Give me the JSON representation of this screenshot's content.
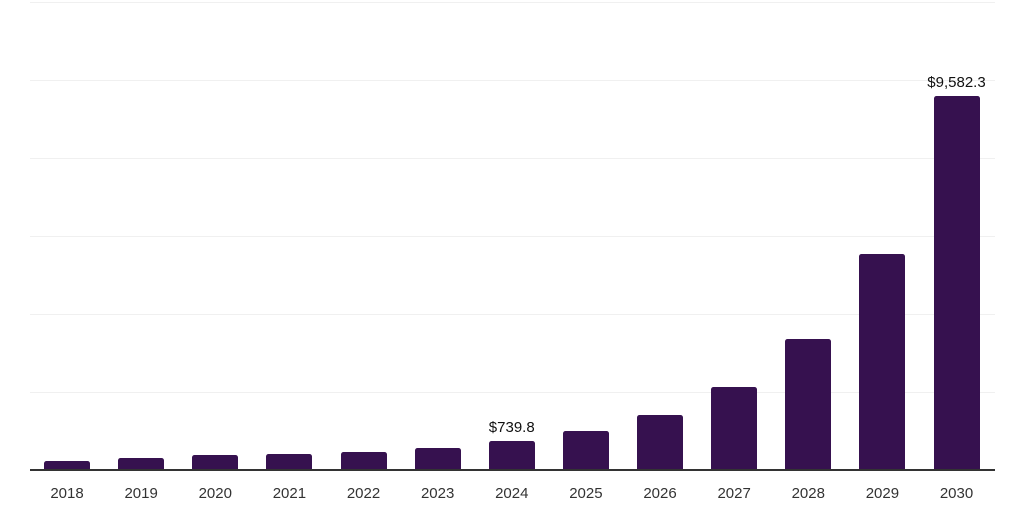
{
  "chart_data": {
    "type": "bar",
    "title": "",
    "xlabel": "",
    "ylabel": "",
    "categories": [
      "2018",
      "2019",
      "2020",
      "2021",
      "2022",
      "2023",
      "2024",
      "2025",
      "2026",
      "2027",
      "2028",
      "2029",
      "2030"
    ],
    "values": [
      235,
      320,
      390,
      415,
      450,
      575,
      739.8,
      1010,
      1410,
      2125,
      3365,
      5535,
      9582.3
    ],
    "value_labels": [
      null,
      null,
      null,
      null,
      null,
      null,
      "$739.8",
      null,
      null,
      null,
      null,
      null,
      "$9,582.3"
    ],
    "ylim": [
      0,
      12000
    ],
    "gridline_step": 2000,
    "grid": "horizontal",
    "y_tick_labels_visible": false,
    "legend": "none",
    "colors": {
      "bar": "#36114F",
      "axis": "#333333",
      "gridline": "#F0F0F0",
      "tick_label": "#333333",
      "data_label": "#111111",
      "background": "#FFFFFF"
    }
  }
}
